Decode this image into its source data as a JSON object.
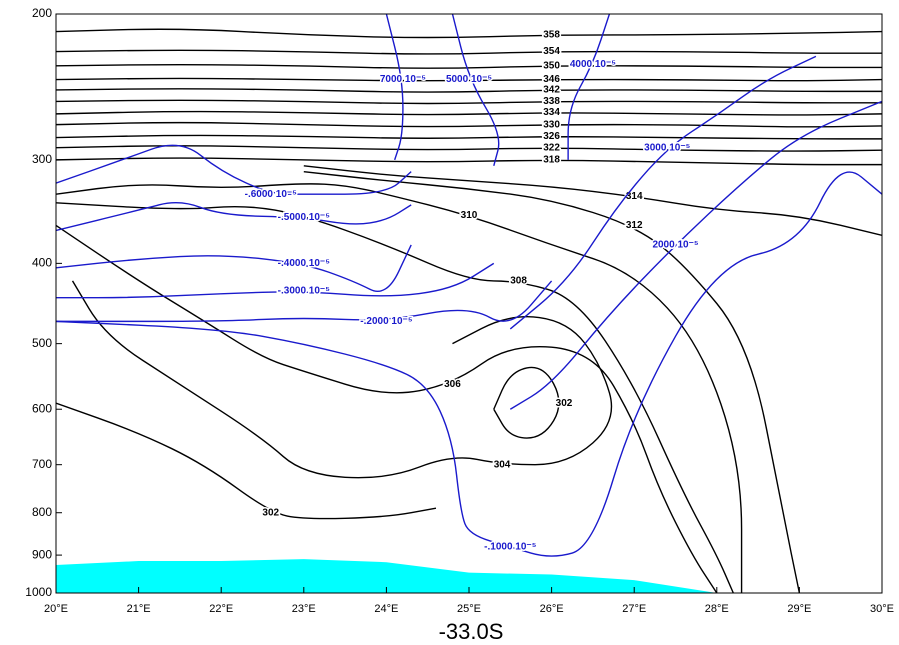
{
  "chart_data": {
    "type": "contour",
    "title": "-33.0S",
    "xlim": [
      20,
      30
    ],
    "xticks": [
      {
        "value": 20,
        "label": "20°E"
      },
      {
        "value": 21,
        "label": "21°E"
      },
      {
        "value": 22,
        "label": "22°E"
      },
      {
        "value": 23,
        "label": "23°E"
      },
      {
        "value": 24,
        "label": "24°E"
      },
      {
        "value": 25,
        "label": "25°E"
      },
      {
        "value": 26,
        "label": "26°E"
      },
      {
        "value": 27,
        "label": "27°E"
      },
      {
        "value": 28,
        "label": "28°E"
      },
      {
        "value": 29,
        "label": "29°E"
      },
      {
        "value": 30,
        "label": "30°E"
      }
    ],
    "ylim": [
      1000,
      200
    ],
    "log": true,
    "yticks": [
      200,
      300,
      400,
      500,
      600,
      700,
      800,
      900,
      1000
    ],
    "terrain": {
      "color": "#00ffff",
      "x": [
        20,
        21,
        22,
        23,
        24,
        25,
        26,
        27,
        28,
        29,
        30
      ],
      "values": [
        925,
        915,
        915,
        910,
        918,
        945,
        950,
        965,
        1000,
        1000,
        1000
      ]
    },
    "contours": [
      {
        "label": "302",
        "color": "#000000",
        "x": [
          20,
          21,
          21.8,
          22.6,
          23,
          24,
          24.6
        ],
        "values": [
          590,
          640,
          700,
          800,
          815,
          810,
          790
        ]
      },
      {
        "label": "302",
        "color": "#000000",
        "x": [
          25.3,
          25.5,
          25.9,
          26.15,
          25.9,
          25.5,
          25.3
        ],
        "values": [
          600,
          540,
          530,
          590,
          650,
          650,
          600
        ]
      },
      {
        "label": "304",
        "color": "#000000",
        "x": [
          20.2,
          20.6,
          21.5,
          22.5,
          23,
          24,
          24.8,
          25.4,
          26.2,
          26.8,
          26.6,
          26.2,
          25.5,
          24.8
        ],
        "values": [
          420,
          490,
          560,
          650,
          720,
          730,
          680,
          700,
          700,
          620,
          530,
          470,
          460,
          500
        ]
      },
      {
        "label": "306",
        "color": "#000000",
        "x": [
          20,
          21,
          21.8,
          22.5,
          23,
          24,
          24.8,
          25.5,
          26.5,
          27,
          27.3,
          27.7,
          28
        ],
        "values": [
          360,
          420,
          470,
          520,
          540,
          580,
          560,
          500,
          510,
          620,
          750,
          900,
          1000
        ]
      },
      {
        "label": "308",
        "color": "#000000",
        "x": [
          20,
          21.5,
          22.3,
          23,
          24,
          25,
          25.6,
          26.3,
          27,
          27.6,
          28,
          28.2
        ],
        "values": [
          338,
          345,
          340,
          350,
          380,
          420,
          420,
          440,
          560,
          760,
          900,
          1000
        ]
      },
      {
        "label": "310",
        "color": "#000000",
        "x": [
          20,
          21,
          22,
          23,
          23.5,
          24,
          25,
          26,
          27,
          27.8,
          28.3,
          28.3
        ],
        "values": [
          330,
          320,
          325,
          320,
          322,
          330,
          350,
          380,
          410,
          500,
          700,
          1000
        ]
      },
      {
        "label": "312",
        "color": "#000000",
        "x": [
          23,
          24,
          25,
          26,
          27,
          27.6,
          28.4,
          28.8,
          29
        ],
        "values": [
          310,
          318,
          325,
          335,
          360,
          400,
          500,
          800,
          1000
        ]
      },
      {
        "label": "314",
        "color": "#000000",
        "x": [
          23,
          24,
          25,
          26,
          27,
          28,
          29,
          30
        ],
        "values": [
          305,
          313,
          318,
          323,
          332,
          345,
          350,
          370
        ]
      },
      {
        "label": "318",
        "color": "#000000",
        "x": [
          20,
          21.5,
          23,
          24.5,
          26,
          27.5,
          29,
          30
        ],
        "values": [
          300,
          298,
          300,
          302,
          300,
          302,
          304,
          304
        ]
      },
      {
        "label": "322",
        "color": "#000000",
        "x": [
          20,
          21.5,
          23,
          24.5,
          26,
          27.5,
          29,
          30
        ],
        "values": [
          290,
          288,
          290,
          292,
          290,
          292,
          293,
          292
        ]
      },
      {
        "label": "326",
        "color": "#000000",
        "x": [
          20,
          21.5,
          23,
          24.5,
          26,
          27.5,
          29,
          30
        ],
        "values": [
          282,
          280,
          281,
          283,
          281,
          282,
          283,
          283
        ]
      },
      {
        "label": "330",
        "color": "#000000",
        "x": [
          20,
          21.5,
          23,
          24.5,
          26,
          27.5,
          29,
          30
        ],
        "values": [
          272,
          270,
          272,
          274,
          272,
          272,
          274,
          273
        ]
      },
      {
        "label": "334",
        "color": "#000000",
        "x": [
          20,
          21.5,
          23,
          24.5,
          26,
          27.5,
          29,
          30
        ],
        "values": [
          264,
          262,
          263,
          265,
          263,
          264,
          265,
          264
        ]
      },
      {
        "label": "338",
        "color": "#000000",
        "x": [
          20,
          21.5,
          23,
          24.5,
          26,
          27.5,
          29,
          30
        ],
        "values": [
          255,
          254,
          255,
          257,
          255,
          255,
          256,
          256
        ]
      },
      {
        "label": "342",
        "color": "#000000",
        "x": [
          20,
          21.5,
          23,
          24.5,
          26,
          27.5,
          29,
          30
        ],
        "values": [
          247,
          246,
          247,
          249,
          247,
          247,
          248,
          248
        ]
      },
      {
        "label": "346",
        "color": "#000000",
        "x": [
          20,
          21.5,
          23,
          24.5,
          26,
          27.5,
          29,
          30
        ],
        "values": [
          240,
          239,
          240,
          241,
          240,
          240,
          241,
          240
        ]
      },
      {
        "label": "350",
        "color": "#000000",
        "x": [
          20,
          21.5,
          23,
          24.5,
          26,
          27.5,
          29,
          30
        ],
        "values": [
          231,
          230,
          231,
          233,
          231,
          231,
          232,
          232
        ]
      },
      {
        "label": "354",
        "color": "#000000",
        "x": [
          20,
          21.5,
          23,
          24.5,
          26,
          27.5,
          29,
          30
        ],
        "values": [
          222,
          221,
          222,
          224,
          222,
          222,
          223,
          223
        ]
      },
      {
        "label": "358",
        "color": "#000000",
        "x": [
          20,
          21.5,
          23,
          24.5,
          26,
          27.5,
          29,
          30
        ],
        "values": [
          210,
          208,
          212,
          214,
          212,
          212,
          211,
          210
        ]
      },
      {
        "label": "-.6000 10⁻⁵",
        "color": "#1a1acc",
        "x": [
          20,
          20.8,
          21.5,
          22,
          22.6,
          23,
          24,
          24.3
        ],
        "values": [
          320,
          300,
          283,
          310,
          330,
          330,
          330,
          310
        ]
      },
      {
        "label": "-.5000 10⁻⁵",
        "color": "#1a1acc",
        "x": [
          20,
          21,
          21.5,
          22,
          23,
          23.6,
          24,
          24.3
        ],
        "values": [
          365,
          345,
          335,
          350,
          352,
          360,
          355,
          340
        ]
      },
      {
        "label": "-.4000 10⁻⁵",
        "color": "#1a1acc",
        "x": [
          20,
          21,
          22,
          23,
          23.6,
          24,
          24.3
        ],
        "values": [
          405,
          395,
          390,
          400,
          420,
          440,
          380
        ]
      },
      {
        "label": "-.3000 10⁻⁵",
        "color": "#1a1acc",
        "x": [
          20,
          21,
          22,
          23,
          24,
          24.8,
          25.3
        ],
        "values": [
          440,
          440,
          435,
          432,
          440,
          430,
          400
        ]
      },
      {
        "label": "-.2000 10⁻⁵",
        "color": "#1a1acc",
        "x": [
          20,
          22,
          23,
          24,
          25,
          25.5,
          26
        ],
        "values": [
          470,
          470,
          465,
          470,
          450,
          480,
          420
        ]
      },
      {
        "label": "-.1000 10⁻⁵",
        "color": "#1a1acc",
        "x": [
          20,
          22,
          23,
          24,
          24.5,
          24.8,
          24.9,
          25,
          25.5,
          26,
          26.5,
          27,
          28,
          29,
          29.5,
          30
        ],
        "values": [
          470,
          480,
          500,
          530,
          560,
          650,
          800,
          850,
          880,
          910,
          880,
          600,
          400,
          380,
          300,
          330
        ]
      },
      {
        "label": "2000 10⁻⁵",
        "color": "#1a1acc",
        "x": [
          25.5,
          26,
          26.7,
          27.5,
          28.3,
          29,
          30
        ],
        "values": [
          600,
          560,
          460,
          380,
          320,
          280,
          255
        ]
      },
      {
        "label": "3000 10⁻⁵",
        "color": "#1a1acc",
        "x": [
          25.5,
          26.2,
          26.8,
          27.4,
          28,
          28.6,
          29.2
        ],
        "values": [
          480,
          420,
          340,
          290,
          265,
          240,
          225
        ]
      },
      {
        "label": "4000 10⁻⁵",
        "color": "#1a1acc",
        "x": [
          26.2,
          26.2,
          26.5,
          26.7
        ],
        "values": [
          300,
          260,
          230,
          200
        ]
      },
      {
        "label": "5000 10⁻⁵",
        "color": "#1a1acc",
        "x": [
          25.3,
          25.4,
          25.0,
          24.8
        ],
        "values": [
          305,
          280,
          240,
          200
        ]
      },
      {
        "label": "7000 10⁻⁵",
        "color": "#1a1acc",
        "x": [
          24.1,
          24.2,
          24.2,
          24.0
        ],
        "values": [
          300,
          280,
          240,
          200
        ]
      }
    ]
  }
}
